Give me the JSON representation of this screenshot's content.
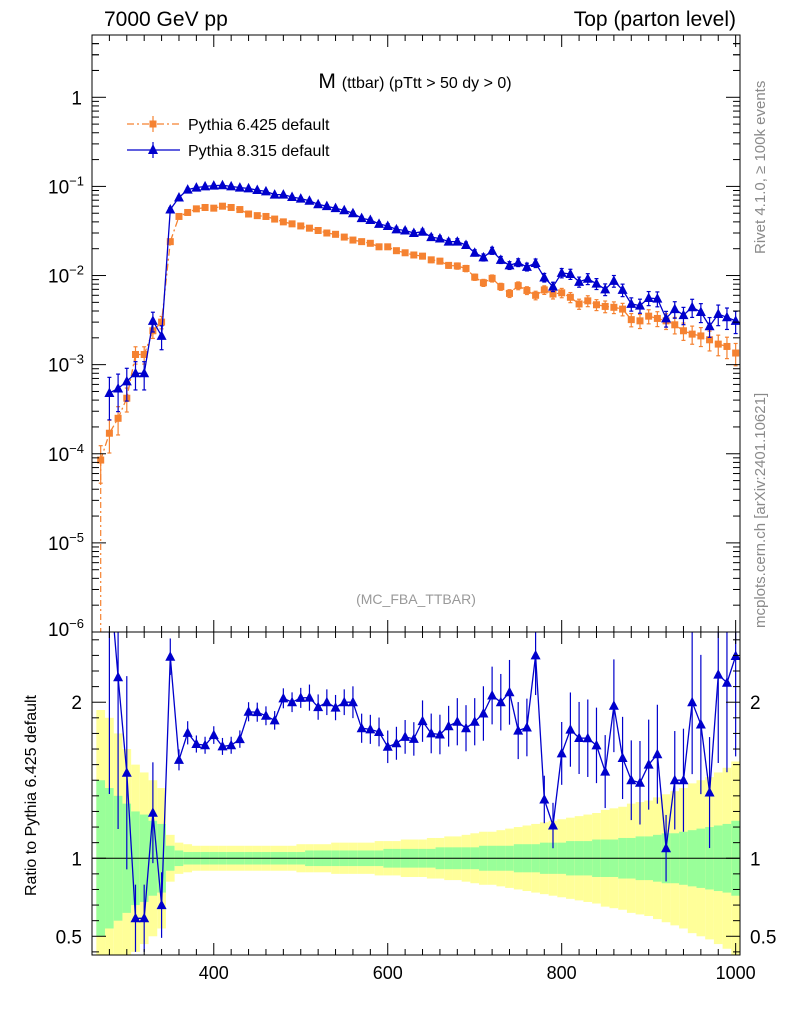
{
  "header": {
    "left": "7000 GeV pp",
    "right": "Top (parton level)"
  },
  "side": {
    "rivet": "Rivet 4.1.0, ≥ 100k events",
    "mcplots": "mcplots.cern.ch [arXiv:2401.10621]"
  },
  "chart_data": {
    "type": "line",
    "title_main": "M",
    "title_sub": "(ttbar) (pTtt > 50 dy > 0)",
    "watermark": "(MC_FBA_TTBAR)",
    "xlim": [
      260,
      1005
    ],
    "x_ticks": [
      "400",
      "600",
      "800",
      "1000"
    ],
    "top_panel": {
      "yscale": "log",
      "ylim": [
        1e-06,
        5
      ],
      "y_ticks": [
        {
          "base": "1",
          "exp": ""
        },
        {
          "base": "10",
          "exp": "−1"
        },
        {
          "base": "10",
          "exp": "−2"
        },
        {
          "base": "10",
          "exp": "−3"
        },
        {
          "base": "10",
          "exp": "−4"
        },
        {
          "base": "10",
          "exp": "−5"
        },
        {
          "base": "10",
          "exp": "−6"
        }
      ]
    },
    "ratio_panel": {
      "ylabel": "Ratio to Pythia 6.425 default",
      "ylim": [
        0.38,
        2.45
      ],
      "y_ticks": [
        "2",
        "1",
        "0.5"
      ],
      "reference_line": 1
    },
    "x": [
      270,
      280,
      290,
      300,
      310,
      320,
      330,
      340,
      350,
      360,
      370,
      380,
      390,
      400,
      410,
      420,
      430,
      440,
      450,
      460,
      470,
      480,
      490,
      500,
      510,
      520,
      530,
      540,
      550,
      560,
      570,
      580,
      590,
      600,
      610,
      620,
      630,
      640,
      650,
      660,
      670,
      680,
      690,
      700,
      710,
      720,
      730,
      740,
      750,
      760,
      770,
      780,
      790,
      800,
      810,
      820,
      830,
      840,
      850,
      860,
      870,
      880,
      890,
      900,
      910,
      920,
      930,
      940,
      950,
      960,
      970,
      980,
      990,
      1000
    ],
    "series": [
      {
        "name": "Pythia 6.425 default",
        "color": "#f58231",
        "marker": "square",
        "linestyle": "dash-dot",
        "values": [
          8.5e-05,
          0.00017,
          0.00025,
          0.00042,
          0.0013,
          0.0013,
          0.0024,
          0.003,
          0.024,
          0.046,
          0.051,
          0.056,
          0.058,
          0.057,
          0.06,
          0.058,
          0.055,
          0.049,
          0.047,
          0.046,
          0.043,
          0.04,
          0.038,
          0.036,
          0.034,
          0.032,
          0.03,
          0.029,
          0.027,
          0.025,
          0.024,
          0.023,
          0.021,
          0.021,
          0.019,
          0.018,
          0.017,
          0.0165,
          0.015,
          0.0145,
          0.013,
          0.0128,
          0.012,
          0.0096,
          0.0083,
          0.0093,
          0.0075,
          0.0063,
          0.0077,
          0.0068,
          0.006,
          0.0069,
          0.0062,
          0.0064,
          0.0057,
          0.0048,
          0.0052,
          0.0047,
          0.0045,
          0.0044,
          0.0042,
          0.0032,
          0.0031,
          0.0035,
          0.0033,
          0.0031,
          0.0028,
          0.0024,
          0.0022,
          0.0021,
          0.0019,
          0.0017,
          0.0016,
          0.00135
        ],
        "errors_rel": [
          0.45,
          0.4,
          0.35,
          0.3,
          0.22,
          0.22,
          0.18,
          0.16,
          0.05,
          0.03,
          0.03,
          0.03,
          0.03,
          0.03,
          0.03,
          0.03,
          0.03,
          0.03,
          0.03,
          0.03,
          0.03,
          0.03,
          0.03,
          0.03,
          0.04,
          0.04,
          0.04,
          0.04,
          0.04,
          0.05,
          0.05,
          0.05,
          0.05,
          0.06,
          0.06,
          0.06,
          0.06,
          0.07,
          0.07,
          0.07,
          0.07,
          0.08,
          0.08,
          0.08,
          0.09,
          0.09,
          0.09,
          0.1,
          0.1,
          0.1,
          0.11,
          0.11,
          0.12,
          0.12,
          0.13,
          0.13,
          0.14,
          0.14,
          0.15,
          0.15,
          0.16,
          0.17,
          0.18,
          0.18,
          0.19,
          0.2,
          0.21,
          0.22,
          0.23,
          0.24,
          0.25,
          0.26,
          0.27,
          0.28
        ]
      },
      {
        "name": "Pythia 8.315 default",
        "color": "#0000cc",
        "marker": "triangle",
        "linestyle": "solid",
        "values": [
          null,
          0.00048,
          0.00054,
          0.00065,
          0.0008,
          0.0008,
          0.0031,
          0.0021,
          0.055,
          0.075,
          0.092,
          0.097,
          0.1,
          0.102,
          0.103,
          0.1,
          0.097,
          0.095,
          0.091,
          0.088,
          0.081,
          0.081,
          0.076,
          0.073,
          0.069,
          0.063,
          0.06,
          0.057,
          0.054,
          0.05,
          0.044,
          0.042,
          0.038,
          0.036,
          0.033,
          0.032,
          0.03,
          0.031,
          0.027,
          0.026,
          0.024,
          0.024,
          0.022,
          0.018,
          0.016,
          0.019,
          0.015,
          0.013,
          0.014,
          0.0125,
          0.0138,
          0.0095,
          0.0075,
          0.0107,
          0.0104,
          0.0085,
          0.0092,
          0.0081,
          0.007,
          0.0087,
          0.0069,
          0.0048,
          0.0046,
          0.0056,
          0.0055,
          0.0033,
          0.0042,
          0.0036,
          0.0044,
          0.0039,
          0.0027,
          0.0037,
          0.0034,
          0.0031
        ],
        "errors_rel": [
          0,
          0.5,
          0.45,
          0.4,
          0.35,
          0.35,
          0.25,
          0.3,
          0.05,
          0.04,
          0.04,
          0.03,
          0.03,
          0.03,
          0.03,
          0.03,
          0.03,
          0.03,
          0.03,
          0.03,
          0.03,
          0.03,
          0.03,
          0.03,
          0.04,
          0.04,
          0.04,
          0.04,
          0.04,
          0.05,
          0.05,
          0.05,
          0.05,
          0.06,
          0.06,
          0.06,
          0.06,
          0.07,
          0.07,
          0.07,
          0.07,
          0.08,
          0.08,
          0.08,
          0.09,
          0.09,
          0.09,
          0.1,
          0.1,
          0.1,
          0.11,
          0.11,
          0.12,
          0.12,
          0.13,
          0.13,
          0.14,
          0.14,
          0.15,
          0.15,
          0.16,
          0.17,
          0.18,
          0.18,
          0.19,
          0.2,
          0.21,
          0.22,
          0.23,
          0.24,
          0.25,
          0.26,
          0.27,
          0.28
        ]
      }
    ],
    "ratio_bands": {
      "inner_color": "#99ff99",
      "outer_color": "#ffff99",
      "inner_halfwidth": [
        0.5,
        0.45,
        0.4,
        0.35,
        0.3,
        0.28,
        0.24,
        0.22,
        0.08,
        0.05,
        0.04,
        0.04,
        0.04,
        0.04,
        0.04,
        0.04,
        0.04,
        0.04,
        0.04,
        0.04,
        0.04,
        0.04,
        0.04,
        0.04,
        0.05,
        0.05,
        0.05,
        0.05,
        0.05,
        0.05,
        0.05,
        0.05,
        0.05,
        0.06,
        0.06,
        0.06,
        0.06,
        0.06,
        0.06,
        0.07,
        0.07,
        0.07,
        0.07,
        0.07,
        0.08,
        0.08,
        0.08,
        0.08,
        0.09,
        0.09,
        0.09,
        0.1,
        0.1,
        0.1,
        0.11,
        0.11,
        0.11,
        0.12,
        0.12,
        0.12,
        0.13,
        0.13,
        0.14,
        0.14,
        0.15,
        0.16,
        0.16,
        0.17,
        0.18,
        0.19,
        0.2,
        0.21,
        0.22,
        0.24
      ],
      "outer_halfwidth": [
        0.95,
        0.9,
        0.8,
        0.7,
        0.6,
        0.55,
        0.5,
        0.45,
        0.15,
        0.1,
        0.09,
        0.08,
        0.08,
        0.08,
        0.08,
        0.08,
        0.08,
        0.08,
        0.08,
        0.08,
        0.08,
        0.08,
        0.08,
        0.09,
        0.09,
        0.09,
        0.09,
        0.1,
        0.1,
        0.1,
        0.1,
        0.1,
        0.11,
        0.11,
        0.11,
        0.12,
        0.12,
        0.12,
        0.13,
        0.13,
        0.14,
        0.14,
        0.15,
        0.16,
        0.17,
        0.17,
        0.18,
        0.19,
        0.2,
        0.21,
        0.22,
        0.23,
        0.24,
        0.25,
        0.26,
        0.27,
        0.28,
        0.29,
        0.31,
        0.32,
        0.33,
        0.35,
        0.36,
        0.37,
        0.39,
        0.41,
        0.43,
        0.45,
        0.48,
        0.5,
        0.52,
        0.55,
        0.58,
        0.62
      ]
    }
  }
}
